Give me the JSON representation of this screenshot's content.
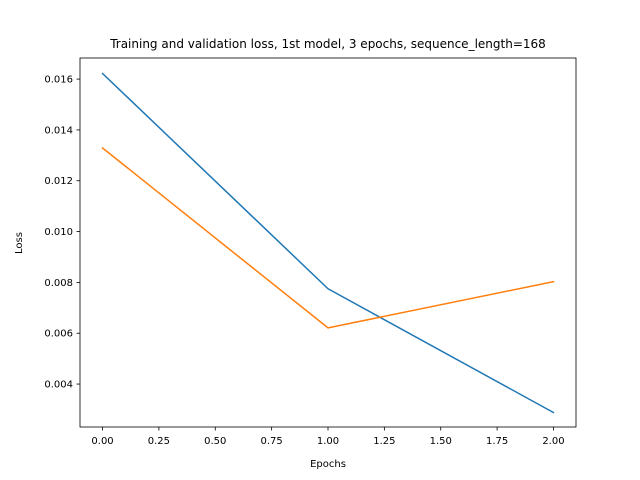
{
  "chart_data": {
    "type": "line",
    "title": "Training and validation loss, 1st model, 3 epochs, sequence_length=168",
    "xlabel": "Epochs",
    "ylabel": "Loss",
    "x": [
      0,
      1,
      2
    ],
    "xlim": [
      -0.1,
      2.1
    ],
    "ylim": [
      0.00231,
      0.01683
    ],
    "xticks": [
      0.0,
      0.25,
      0.5,
      0.75,
      1.0,
      1.25,
      1.5,
      1.75,
      2.0
    ],
    "xtick_labels": [
      "0.00",
      "0.25",
      "0.50",
      "0.75",
      "1.00",
      "1.25",
      "1.50",
      "1.75",
      "2.00"
    ],
    "yticks": [
      0.004,
      0.006,
      0.008,
      0.01,
      0.012,
      0.014,
      0.016
    ],
    "ytick_labels": [
      "0.004",
      "0.006",
      "0.008",
      "0.010",
      "0.012",
      "0.014",
      "0.016"
    ],
    "grid": false,
    "legend": false,
    "series": [
      {
        "values": [
          0.01622,
          0.00775,
          0.00288
        ],
        "color": "#1f77b4"
      },
      {
        "values": [
          0.01329,
          0.00621,
          0.00803
        ],
        "color": "#ff7f0e"
      }
    ]
  }
}
